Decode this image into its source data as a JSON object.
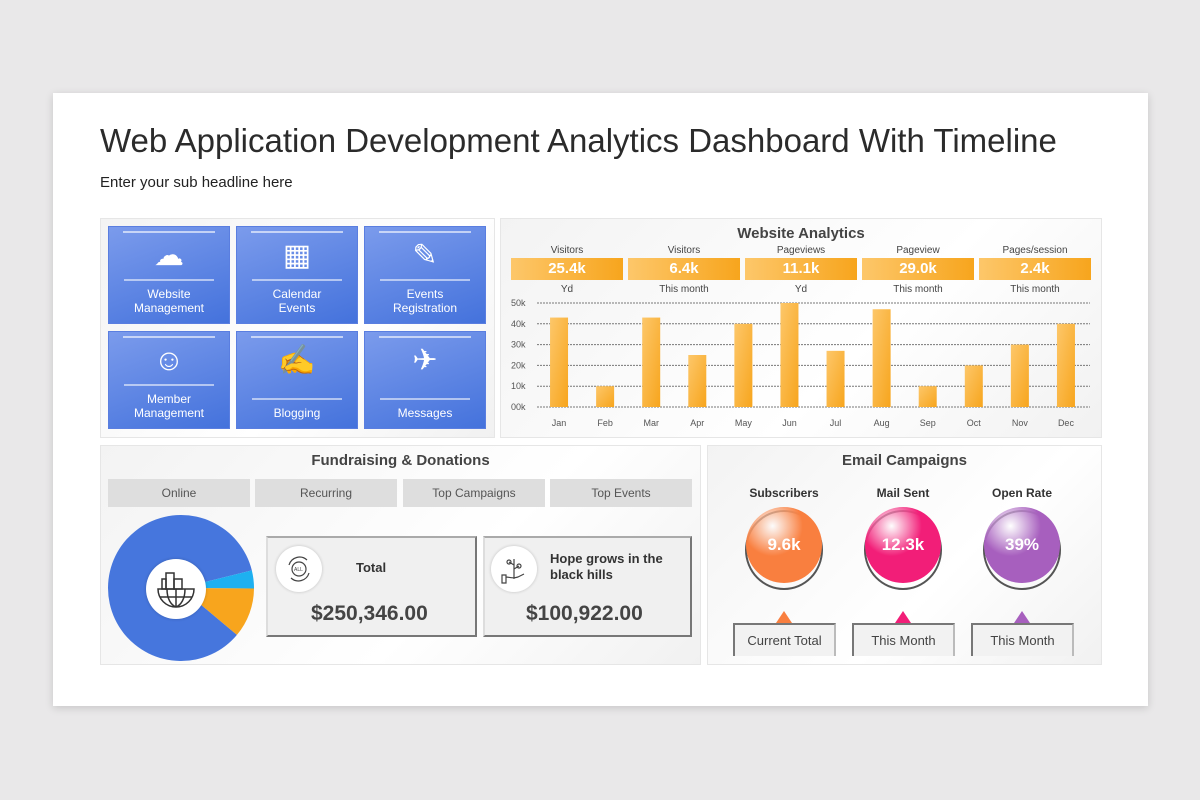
{
  "header": {
    "title": "Web Application Development Analytics Dashboard With Timeline",
    "subtitle": "Enter your sub headline here"
  },
  "tiles": [
    {
      "label": "Website Management",
      "icon": "cloud-network-icon"
    },
    {
      "label": "Calendar Events",
      "icon": "calendar-icon"
    },
    {
      "label": "Events Registration",
      "icon": "registration-form-icon"
    },
    {
      "label": "Member Management",
      "icon": "team-network-icon"
    },
    {
      "label": "Blogging",
      "icon": "laptop-blog-icon"
    },
    {
      "label": "Messages",
      "icon": "paper-plane-icon"
    }
  ],
  "analytics": {
    "title": "Website Analytics",
    "kpis": [
      {
        "label": "Visitors",
        "value": "25.4k",
        "period": "Yd"
      },
      {
        "label": "Visitors",
        "value": "6.4k",
        "period": "This month"
      },
      {
        "label": "Pageviews",
        "value": "11.1k",
        "period": "Yd"
      },
      {
        "label": "Pageview",
        "value": "29.0k",
        "period": "This month"
      },
      {
        "label": "Pages/session",
        "value": "2.4k",
        "period": "This month"
      }
    ]
  },
  "chart_data": [
    {
      "type": "bar",
      "categories": [
        "Jan",
        "Feb",
        "Mar",
        "Apr",
        "May",
        "Jun",
        "Jul",
        "Aug",
        "Sep",
        "Oct",
        "Nov",
        "Dec"
      ],
      "values": [
        43,
        10,
        43,
        25,
        40,
        50,
        27,
        47,
        10,
        20,
        30,
        40
      ],
      "yunit": "k",
      "yticks": [
        "00k",
        "10k",
        "20k",
        "30k",
        "40k",
        "50k"
      ],
      "ylim": [
        0,
        50
      ],
      "grid": true,
      "color": "#f7a51d"
    },
    {
      "type": "pie",
      "donut": true,
      "values": [
        85,
        4,
        11
      ],
      "colors": [
        "#4676dd",
        "#1eb0f0",
        "#f8a51d"
      ]
    }
  ],
  "fundraising": {
    "title": "Fundraising & Donations",
    "tabs": [
      "Online",
      "Recurring",
      "Top Campaigns",
      "Top Events"
    ],
    "cards": [
      {
        "label": "Total",
        "value": "$250,346.00",
        "icon": "all-cycle-icon"
      },
      {
        "label": "Hope grows in the black hills",
        "value": "$100,922.00",
        "icon": "plant-hand-icon"
      }
    ]
  },
  "email": {
    "title": "Email Campaigns",
    "metrics": [
      {
        "label": "Subscribers",
        "value": "9.6k",
        "caption": "Current Total",
        "color": "#f97f3f"
      },
      {
        "label": "Mail Sent",
        "value": "12.3k",
        "caption": "This Month",
        "color": "#f21e78"
      },
      {
        "label": "Open Rate",
        "value": "39%",
        "caption": "This Month",
        "color": "#a75fbe"
      }
    ]
  }
}
